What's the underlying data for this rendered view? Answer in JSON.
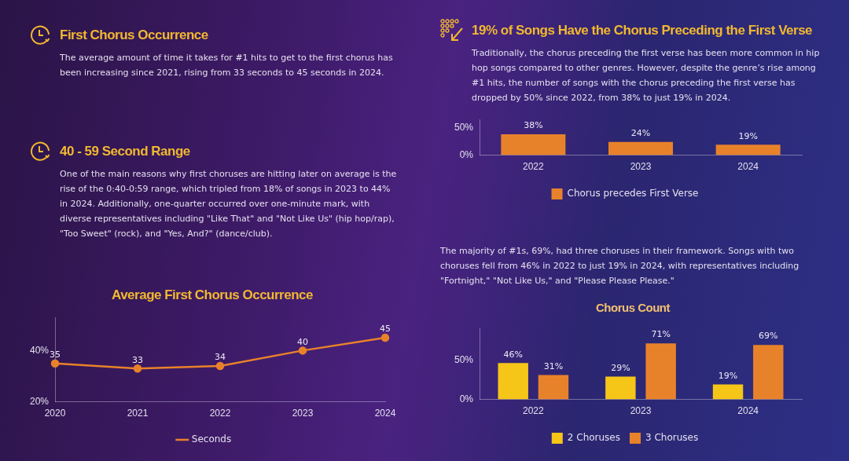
{
  "chart_data": [
    {
      "type": "other",
      "title": "First Chorus Occurrence",
      "subtitle": "The average amount of time it takes for #1 hits to get to the first chorus has been increasing since 2021, rising from 33 seconds to 45 seconds in 2024."
    },
    {
      "type": "other",
      "title": "40 - 59 Second  Range",
      "subtitle": "One of the main reasons why first choruses are hitting later on average is the rise of the 0:40-0:59 range, which tripled from 18% of songs in 2023 to 44% in 2024. Additionally, one-quarter occurred over one-minute mark, with diverse representatives including \"Like That\" and \"Not Like Us\" (hip hop/rap), \"Too Sweet\" (rock), and \"Yes, And?\" (dance/club)."
    },
    {
      "type": "line",
      "title": "Average First Chorus Occurrence",
      "categories": [
        "2020",
        "2021",
        "2022",
        "2023",
        "2024"
      ],
      "series": [
        {
          "name": "Seconds",
          "color": "#e8822a",
          "values": [
            35,
            33,
            34,
            40,
            45
          ]
        }
      ],
      "ylim": [
        20,
        53
      ],
      "yticks": [
        {
          "value": 20,
          "label": "20%"
        },
        {
          "value": 40,
          "label": "40%"
        }
      ],
      "grid": false,
      "legend": "bottom",
      "marker": "circle",
      "data_labels": true
    },
    {
      "type": "bar",
      "title": "19% of Songs Have the Chorus  Preceding the First Verse",
      "subtitle": "Traditionally, the chorus preceding the first verse has been more common in hip hop songs compared to other genres. However, despite the genre’s rise among #1 hits, the number of songs with the chorus preceding the first verse has dropped by 50% since 2022, from 38% to just 19% in 2024.",
      "categories": [
        "2022",
        "2023",
        "2024"
      ],
      "series": [
        {
          "name": "Chorus precedes First Verse",
          "color": "#e8822a",
          "values": [
            38,
            24,
            19
          ],
          "value_labels": [
            "38%",
            "24%",
            "19%"
          ]
        }
      ],
      "ylim": [
        0,
        65
      ],
      "yticks": [
        {
          "value": 0,
          "label": "0%"
        },
        {
          "value": 50,
          "label": "50%"
        }
      ],
      "grid": false,
      "legend": "bottom"
    },
    {
      "type": "bar",
      "title": "Chorus Count",
      "annotations": [
        "The majority of #1s, 69%, had three choruses in their framework. Songs with two choruses fell from 46% in 2022 to just 19% in 2024, with representatives including \"Fortnight,\" \"Not Like Us,\" and \"Please Please Please.\""
      ],
      "categories": [
        "2022",
        "2023",
        "2024"
      ],
      "series": [
        {
          "name": "2 Choruses",
          "color": "#f5c518",
          "values": [
            46,
            29,
            19
          ],
          "value_labels": [
            "46%",
            "29%",
            "19%"
          ]
        },
        {
          "name": "3 Choruses",
          "color": "#e8822a",
          "values": [
            31,
            71,
            69
          ],
          "value_labels": [
            "31%",
            "71%",
            "69%"
          ]
        }
      ],
      "ylim": [
        0,
        90
      ],
      "yticks": [
        {
          "value": 0,
          "label": "0%"
        },
        {
          "value": 50,
          "label": "50%"
        }
      ],
      "grid": false,
      "legend": "bottom"
    }
  ]
}
